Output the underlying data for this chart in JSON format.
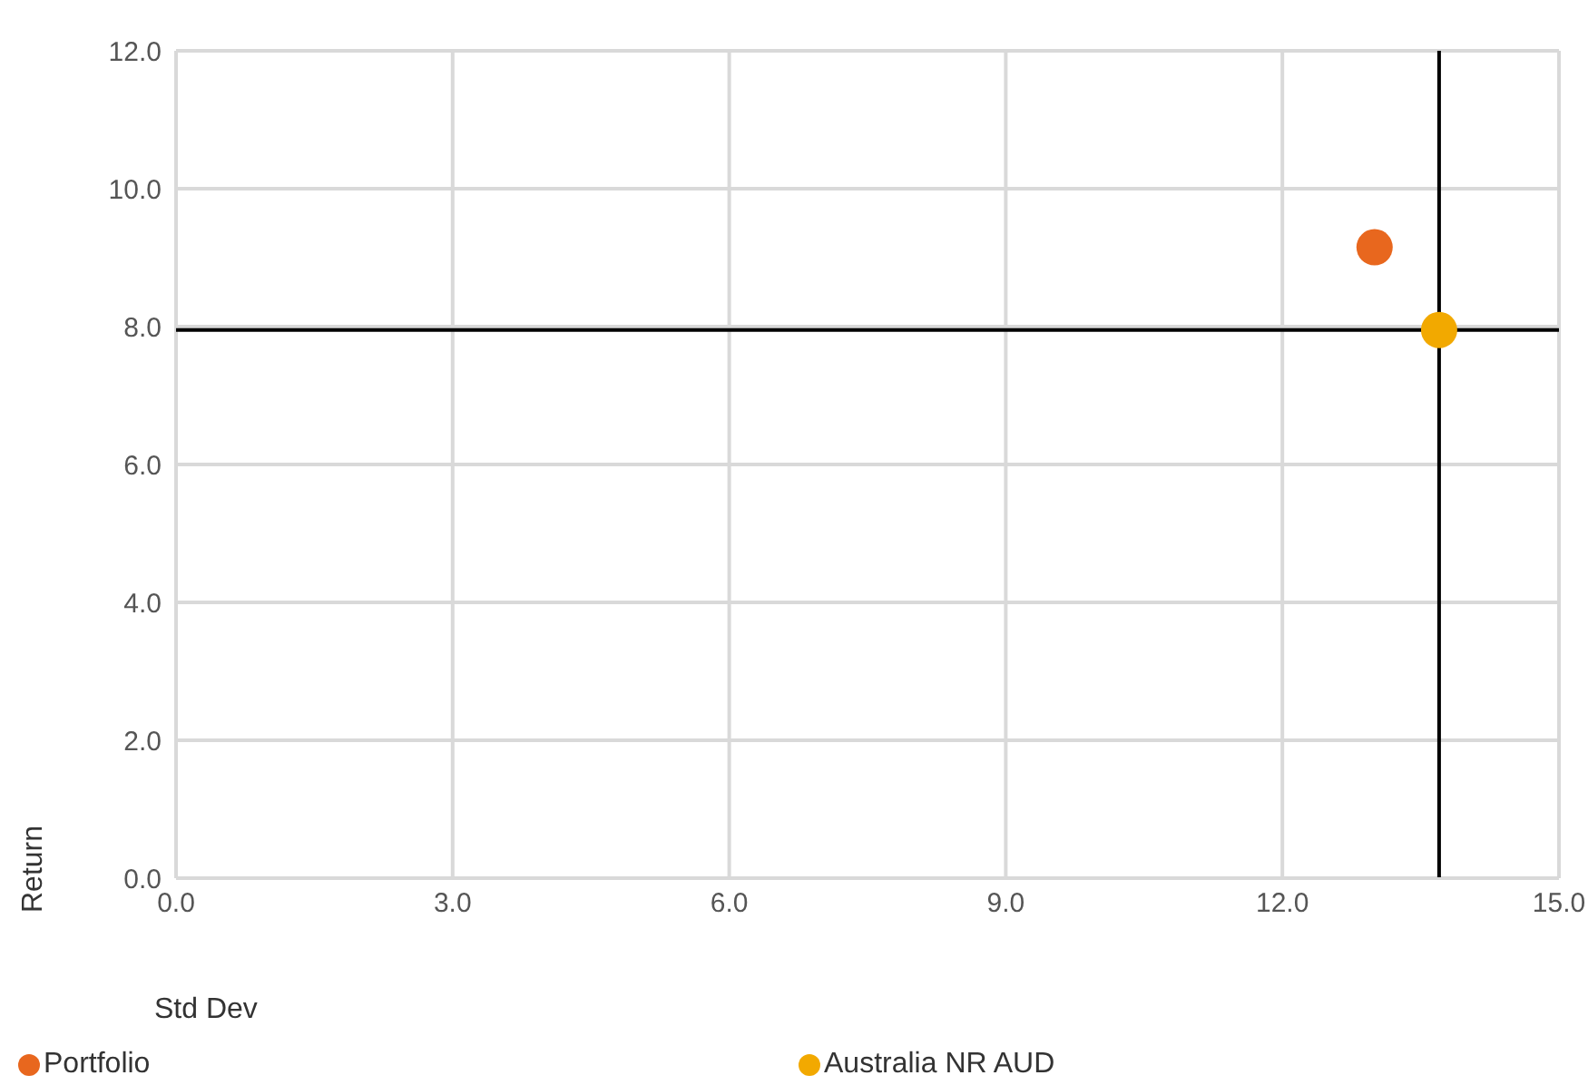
{
  "chart_data": {
    "type": "scatter",
    "xlabel": "Std Dev",
    "ylabel": "Return",
    "xlim": [
      0,
      15
    ],
    "xticks": [
      {
        "value": 0,
        "label": "0.0"
      },
      {
        "value": 3,
        "label": "3.0"
      },
      {
        "value": 6,
        "label": "6.0"
      },
      {
        "value": 9,
        "label": "9.0"
      },
      {
        "value": 12,
        "label": "12.0"
      },
      {
        "value": 15,
        "label": "15.0"
      }
    ],
    "ylim": [
      0,
      12
    ],
    "yticks": [
      {
        "value": 0,
        "label": "0.0"
      },
      {
        "value": 2,
        "label": "2.0"
      },
      {
        "value": 4,
        "label": "4.0"
      },
      {
        "value": 6,
        "label": "6.0"
      },
      {
        "value": 8,
        "label": "8.0"
      },
      {
        "value": 10,
        "label": "10.0"
      },
      {
        "value": 12,
        "label": "12.0"
      }
    ],
    "series": [
      {
        "name": "Portfolio",
        "color": "#e8671e",
        "x": [
          13.0
        ],
        "values": [
          9.15
        ]
      },
      {
        "name": "Australia NR AUD",
        "color": "#f2a900",
        "x": [
          13.7
        ],
        "values": [
          7.95
        ]
      }
    ],
    "ref_lines": [
      {
        "axis": "x",
        "value": 13.7,
        "color": "#000000"
      },
      {
        "axis": "y",
        "value": 7.95,
        "color": "#000000"
      }
    ],
    "grid": true,
    "legend": "bottom",
    "marker": "circle"
  }
}
